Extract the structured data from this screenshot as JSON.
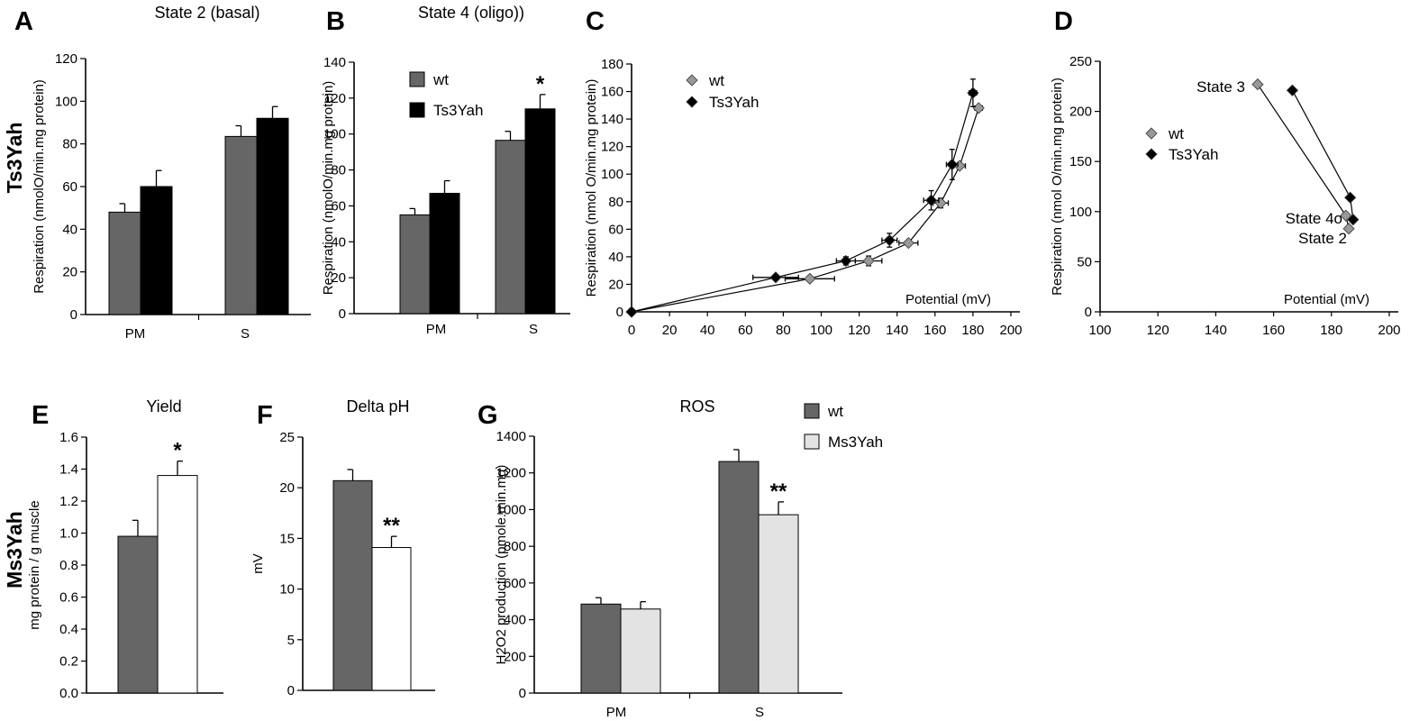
{
  "row_labels": {
    "top": "Ts3Yah",
    "bottom": "Ms3Yah"
  },
  "colors": {
    "wt": "#666666",
    "Ts3Yah": "#000000",
    "Ms3Yah_white": "#ffffff",
    "Ms3Yah_light": "#e3e3e3",
    "wt_marker": "#999999"
  },
  "chart_data": [
    {
      "panel": "A",
      "type": "bar",
      "title": "State 2 (basal)",
      "ylabel": "Respiration (nmolO/min.mg protein)",
      "xlabel": "",
      "ylim": [
        0,
        120
      ],
      "yticks": [
        "0",
        "20",
        "40",
        "60",
        "80",
        "100",
        "120"
      ],
      "categories": [
        "PM",
        "S"
      ],
      "series": [
        {
          "key": "wt",
          "values": [
            48,
            83.5
          ],
          "errors": [
            4,
            5
          ]
        },
        {
          "key": "Ts3Yah",
          "values": [
            60,
            92
          ],
          "errors": [
            7.5,
            5.5
          ]
        }
      ],
      "annotations": []
    },
    {
      "panel": "B",
      "type": "bar",
      "title": "State 4 (oligo))",
      "ylabel": "Respiration (nmolO/min.mg protein)",
      "xlabel": "",
      "ylim": [
        0,
        140
      ],
      "yticks": [
        "0",
        "20",
        "40",
        "60",
        "80",
        "100",
        "120",
        "140"
      ],
      "categories": [
        "PM",
        "S"
      ],
      "series": [
        {
          "name": "wt",
          "key": "wt",
          "values": [
            55,
            96.5
          ],
          "errors": [
            3.5,
            5
          ]
        },
        {
          "name": "Ts3Yah",
          "key": "Ts3Yah",
          "values": [
            67,
            114
          ],
          "errors": [
            7,
            8
          ]
        }
      ],
      "legend": {
        "position": "top-left",
        "entries": [
          "wt",
          "Ts3Yah"
        ]
      },
      "annotations": [
        {
          "text": "*",
          "category": "S",
          "series": "Ts3Yah"
        }
      ]
    },
    {
      "panel": "C",
      "type": "scatter",
      "title": "",
      "ylabel": "Respiration (nmol O/min.mg protein)",
      "xlabel": "Potential (mV)",
      "xlim": [
        0,
        200
      ],
      "ylim": [
        0,
        180
      ],
      "xticks": [
        "0",
        "20",
        "40",
        "60",
        "80",
        "100",
        "120",
        "140",
        "160",
        "180",
        "200"
      ],
      "yticks": [
        "0",
        "20",
        "40",
        "60",
        "80",
        "100",
        "120",
        "140",
        "160",
        "180"
      ],
      "series": [
        {
          "name": "wt",
          "key": "wt_marker",
          "points": [
            {
              "x": 0,
              "y": 0,
              "xerr": 0,
              "yerr": 0
            },
            {
              "x": 94,
              "y": 24,
              "xerr": 13,
              "yerr": 0
            },
            {
              "x": 125,
              "y": 37,
              "xerr": 7,
              "yerr": 3.5
            },
            {
              "x": 146,
              "y": 50,
              "xerr": 5,
              "yerr": 0
            },
            {
              "x": 163,
              "y": 79,
              "xerr": 4,
              "yerr": 3.5
            },
            {
              "x": 173,
              "y": 106,
              "xerr": 3,
              "yerr": 0
            },
            {
              "x": 183,
              "y": 148,
              "xerr": 2,
              "yerr": 0
            }
          ]
        },
        {
          "name": "Ts3Yah",
          "key": "Ts3Yah",
          "points": [
            {
              "x": 0,
              "y": 0,
              "xerr": 0,
              "yerr": 0
            },
            {
              "x": 76,
              "y": 25,
              "xerr": 12,
              "yerr": 0
            },
            {
              "x": 113,
              "y": 37,
              "xerr": 5,
              "yerr": 3
            },
            {
              "x": 136,
              "y": 52,
              "xerr": 4,
              "yerr": 5
            },
            {
              "x": 158,
              "y": 81,
              "xerr": 4,
              "yerr": 7
            },
            {
              "x": 169,
              "y": 107,
              "xerr": 3,
              "yerr": 11
            },
            {
              "x": 180,
              "y": 159,
              "xerr": 2,
              "yerr": 10
            }
          ]
        }
      ],
      "legend": {
        "position": "top-left",
        "entries": [
          "wt",
          "Ts3Yah"
        ]
      }
    },
    {
      "panel": "D",
      "type": "scatter",
      "title": "",
      "ylabel": "Respiration (nmol O/min.mg protein)",
      "xlabel": "Potential (mV)",
      "xlim": [
        100,
        200
      ],
      "ylim": [
        0,
        250
      ],
      "xticks": [
        "100",
        "120",
        "140",
        "160",
        "180",
        "200"
      ],
      "yticks": [
        "0",
        "50",
        "100",
        "150",
        "200",
        "250"
      ],
      "series": [
        {
          "name": "wt",
          "key": "wt_marker",
          "points": [
            {
              "x": 154.5,
              "y": 227,
              "label": "State 3"
            },
            {
              "x": 185,
              "y": 96,
              "label": "State 4o"
            },
            {
              "x": 186,
              "y": 83,
              "label": "State 2"
            }
          ]
        },
        {
          "name": "Ts3Yah",
          "key": "Ts3Yah",
          "points": [
            {
              "x": 166.5,
              "y": 221
            },
            {
              "x": 186.5,
              "y": 114
            },
            {
              "x": 187.5,
              "y": 92
            }
          ]
        }
      ],
      "point_labels": [
        "State 3",
        "State 4o",
        "State 2"
      ],
      "legend": {
        "position": "middle-left",
        "entries": [
          "wt",
          "Ts3Yah"
        ]
      }
    },
    {
      "panel": "E",
      "type": "bar",
      "title": "Yield",
      "ylabel": "mg protein / g muscle",
      "xlabel": "",
      "ylim": [
        0,
        1.6
      ],
      "yticks": [
        "0.0",
        "0.2",
        "0.4",
        "0.6",
        "0.8",
        "1.0",
        "1.2",
        "1.4",
        "1.6"
      ],
      "categories": [
        ""
      ],
      "series": [
        {
          "key": "wt",
          "values": [
            0.98
          ],
          "errors": [
            0.1
          ]
        },
        {
          "key": "Ms3Yah_white",
          "values": [
            1.36
          ],
          "errors": [
            0.09
          ]
        }
      ],
      "annotations": [
        {
          "text": "*",
          "category": 0,
          "series": 1
        }
      ]
    },
    {
      "panel": "F",
      "type": "bar",
      "title": "Delta pH",
      "ylabel": "mV",
      "xlabel": "",
      "ylim": [
        0,
        25
      ],
      "yticks": [
        "0",
        "5",
        "10",
        "15",
        "20",
        "25"
      ],
      "categories": [
        ""
      ],
      "series": [
        {
          "key": "wt",
          "values": [
            20.7
          ],
          "errors": [
            1.1
          ]
        },
        {
          "key": "Ms3Yah_white",
          "values": [
            14.1
          ],
          "errors": [
            1.1
          ]
        }
      ],
      "annotations": [
        {
          "text": "**",
          "category": 0,
          "series": 1
        }
      ]
    },
    {
      "panel": "G",
      "type": "bar",
      "title": "ROS",
      "ylabel": "H2O2 production (pmole.min.mg)",
      "xlabel": "",
      "ylim": [
        0,
        1400
      ],
      "yticks": [
        "0",
        "200",
        "400",
        "600",
        "800",
        "1000",
        "1200",
        "1400"
      ],
      "categories": [
        "PM",
        "S"
      ],
      "series": [
        {
          "name": "wt",
          "key": "wt",
          "values": [
            485,
            1262
          ],
          "errors": [
            35,
            65
          ]
        },
        {
          "name": "Ms3Yah",
          "key": "Ms3Yah_light",
          "values": [
            458,
            972
          ],
          "errors": [
            40,
            70
          ]
        }
      ],
      "legend": {
        "position": "top-right",
        "entries": [
          "wt",
          "Ms3Yah"
        ]
      },
      "annotations": [
        {
          "text": "**",
          "category": "S",
          "series": "Ms3Yah"
        }
      ]
    }
  ]
}
